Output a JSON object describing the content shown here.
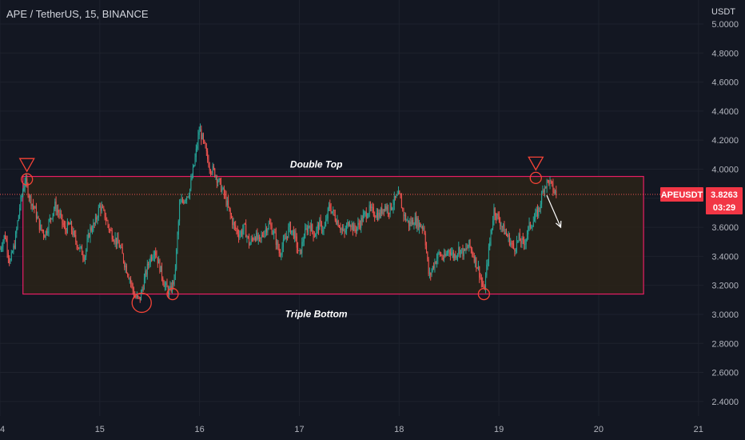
{
  "header": {
    "title": "APE / TetherUS, 15, BINANCE",
    "currency": "USDT"
  },
  "colors": {
    "background": "#131722",
    "up": "#26a69a",
    "down": "#ef5350",
    "box_fill": "#2a2218",
    "box_border": "#e91e63",
    "marker": "#f44336",
    "tag_bg": "#f23645"
  },
  "chart_data": {
    "type": "candlestick",
    "title": "APE / TetherUS, 15, BINANCE",
    "y_unit": "USDT",
    "y_ticks": [
      "5.0000",
      "4.8000",
      "4.6000",
      "4.4000",
      "4.2000",
      "4.0000",
      "3.8000",
      "3.6000",
      "3.4000",
      "3.2000",
      "3.0000",
      "2.8000",
      "2.6000",
      "2.4000"
    ],
    "y_range": [
      2.3,
      5.0
    ],
    "x_ticks": [
      "14",
      "15",
      "16",
      "17",
      "18",
      "19",
      "20",
      "21"
    ],
    "x_range": [
      14.0,
      21.05
    ],
    "price_path": [
      [
        14.0,
        3.45
      ],
      [
        14.05,
        3.55
      ],
      [
        14.1,
        3.35
      ],
      [
        14.15,
        3.5
      ],
      [
        14.2,
        3.75
      ],
      [
        14.25,
        3.93
      ],
      [
        14.3,
        3.8
      ],
      [
        14.35,
        3.72
      ],
      [
        14.4,
        3.6
      ],
      [
        14.45,
        3.55
      ],
      [
        14.5,
        3.65
      ],
      [
        14.55,
        3.75
      ],
      [
        14.6,
        3.68
      ],
      [
        14.65,
        3.58
      ],
      [
        14.7,
        3.62
      ],
      [
        14.75,
        3.52
      ],
      [
        14.8,
        3.45
      ],
      [
        14.85,
        3.4
      ],
      [
        14.9,
        3.58
      ],
      [
        14.95,
        3.62
      ],
      [
        15.0,
        3.75
      ],
      [
        15.05,
        3.68
      ],
      [
        15.1,
        3.58
      ],
      [
        15.15,
        3.52
      ],
      [
        15.2,
        3.47
      ],
      [
        15.25,
        3.35
      ],
      [
        15.3,
        3.25
      ],
      [
        15.35,
        3.12
      ],
      [
        15.4,
        3.1
      ],
      [
        15.45,
        3.25
      ],
      [
        15.5,
        3.38
      ],
      [
        15.55,
        3.45
      ],
      [
        15.6,
        3.33
      ],
      [
        15.65,
        3.2
      ],
      [
        15.7,
        3.15
      ],
      [
        15.75,
        3.25
      ],
      [
        15.8,
        3.75
      ],
      [
        15.85,
        3.8
      ],
      [
        15.9,
        3.85
      ],
      [
        15.95,
        4.05
      ],
      [
        16.0,
        4.28
      ],
      [
        16.05,
        4.15
      ],
      [
        16.1,
        4.02
      ],
      [
        16.15,
        3.98
      ],
      [
        16.2,
        3.9
      ],
      [
        16.25,
        3.82
      ],
      [
        16.3,
        3.7
      ],
      [
        16.35,
        3.6
      ],
      [
        16.4,
        3.55
      ],
      [
        16.45,
        3.6
      ],
      [
        16.5,
        3.48
      ],
      [
        16.55,
        3.55
      ],
      [
        16.6,
        3.5
      ],
      [
        16.65,
        3.58
      ],
      [
        16.7,
        3.62
      ],
      [
        16.75,
        3.55
      ],
      [
        16.8,
        3.42
      ],
      [
        16.85,
        3.5
      ],
      [
        16.9,
        3.6
      ],
      [
        16.95,
        3.55
      ],
      [
        17.0,
        3.4
      ],
      [
        17.05,
        3.55
      ],
      [
        17.1,
        3.62
      ],
      [
        17.15,
        3.55
      ],
      [
        17.2,
        3.62
      ],
      [
        17.25,
        3.58
      ],
      [
        17.3,
        3.75
      ],
      [
        17.35,
        3.68
      ],
      [
        17.4,
        3.62
      ],
      [
        17.45,
        3.55
      ],
      [
        17.5,
        3.65
      ],
      [
        17.55,
        3.58
      ],
      [
        17.6,
        3.62
      ],
      [
        17.65,
        3.68
      ],
      [
        17.7,
        3.72
      ],
      [
        17.75,
        3.7
      ],
      [
        17.8,
        3.68
      ],
      [
        17.85,
        3.75
      ],
      [
        17.9,
        3.72
      ],
      [
        17.95,
        3.78
      ],
      [
        18.0,
        3.82
      ],
      [
        18.05,
        3.68
      ],
      [
        18.1,
        3.62
      ],
      [
        18.15,
        3.65
      ],
      [
        18.2,
        3.62
      ],
      [
        18.25,
        3.6
      ],
      [
        18.3,
        3.25
      ],
      [
        18.35,
        3.35
      ],
      [
        18.4,
        3.42
      ],
      [
        18.45,
        3.38
      ],
      [
        18.5,
        3.45
      ],
      [
        18.55,
        3.4
      ],
      [
        18.6,
        3.45
      ],
      [
        18.65,
        3.42
      ],
      [
        18.7,
        3.48
      ],
      [
        18.75,
        3.4
      ],
      [
        18.8,
        3.3
      ],
      [
        18.85,
        3.15
      ],
      [
        18.9,
        3.45
      ],
      [
        18.95,
        3.72
      ],
      [
        19.0,
        3.65
      ],
      [
        19.05,
        3.58
      ],
      [
        19.1,
        3.52
      ],
      [
        19.15,
        3.45
      ],
      [
        19.2,
        3.52
      ],
      [
        19.25,
        3.48
      ],
      [
        19.3,
        3.6
      ],
      [
        19.35,
        3.65
      ],
      [
        19.4,
        3.72
      ],
      [
        19.45,
        3.88
      ],
      [
        19.5,
        3.92
      ],
      [
        19.55,
        3.85
      ],
      [
        19.58,
        3.83
      ]
    ],
    "current_price": 3.8263,
    "countdown": "03:29",
    "symbol": "APEUSDT",
    "zone": {
      "x_start": 14.23,
      "x_end": 20.45,
      "y_low": 3.14,
      "y_high": 3.95
    },
    "peak_markers": [
      {
        "x": 14.27,
        "y": 3.93
      },
      {
        "x": 19.37,
        "y": 3.94
      }
    ],
    "trough_markers": [
      {
        "x": 15.42,
        "y": 3.08
      },
      {
        "x": 15.73,
        "y": 3.14
      },
      {
        "x": 18.85,
        "y": 3.14
      }
    ],
    "annotations": [
      {
        "text": "Double Top",
        "x": 17.17,
        "y": 4.01
      },
      {
        "text": "Triple Bottom",
        "x": 17.17,
        "y": 2.98
      }
    ],
    "arrow": {
      "from": [
        19.48,
        3.82
      ],
      "to": [
        19.62,
        3.6
      ]
    }
  }
}
